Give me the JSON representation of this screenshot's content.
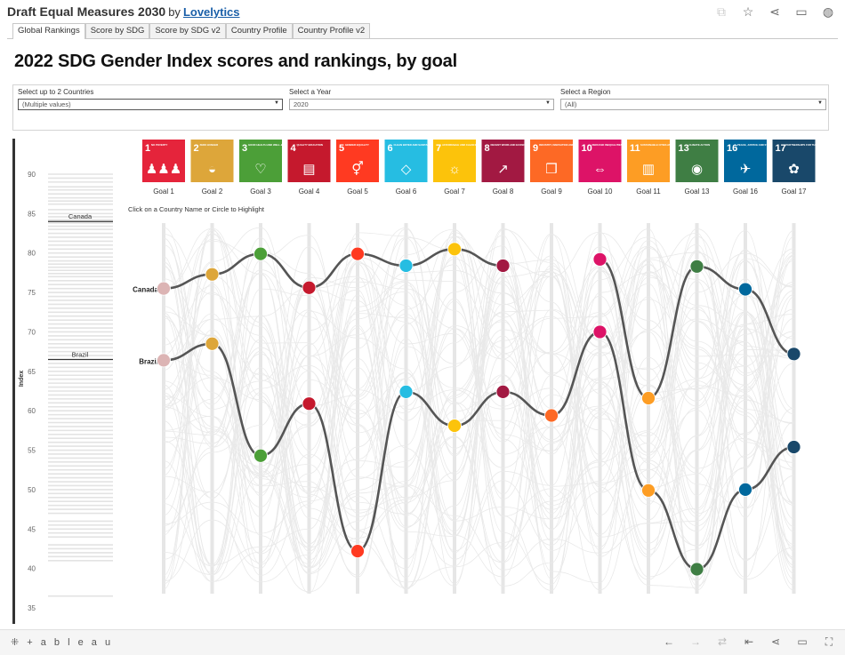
{
  "header": {
    "title": "Draft Equal Measures 2030",
    "by": "by",
    "author": "Lovelytics"
  },
  "tabs": [
    {
      "label": "Global Rankings",
      "active": true
    },
    {
      "label": "Score by SDG",
      "active": false
    },
    {
      "label": "Score by SDG v2",
      "active": false
    },
    {
      "label": "Country Profile",
      "active": false
    },
    {
      "label": "Country Profile v2",
      "active": false
    }
  ],
  "main_title": "2022 SDG Gender Index scores and rankings, by goal",
  "filters": {
    "countries": {
      "label": "Select up to 2 Countries",
      "value": "(Multiple values)"
    },
    "year": {
      "label": "Select a Year",
      "value": "2020"
    },
    "region": {
      "label": "Select a Region",
      "value": "(All)"
    }
  },
  "hint": "Click on a Country Name or Circle to Highlight",
  "goals": [
    {
      "num": "1",
      "caption": "NO POVERTY",
      "label": "Goal 1",
      "color": "#e5243b",
      "glyph": "♟♟♟"
    },
    {
      "num": "2",
      "caption": "ZERO HUNGER",
      "label": "Goal 2",
      "color": "#dda63a",
      "glyph": "◒"
    },
    {
      "num": "3",
      "caption": "GOOD HEALTH AND WELL-BEING",
      "label": "Goal 3",
      "color": "#4c9f38",
      "glyph": "♡"
    },
    {
      "num": "4",
      "caption": "QUALITY EDUCATION",
      "label": "Goal 4",
      "color": "#c5192d",
      "glyph": "▤"
    },
    {
      "num": "5",
      "caption": "GENDER EQUALITY",
      "label": "Goal 5",
      "color": "#ff3a21",
      "glyph": "⚥"
    },
    {
      "num": "6",
      "caption": "CLEAN WATER AND SANITATION",
      "label": "Goal 6",
      "color": "#26bde2",
      "glyph": "◇"
    },
    {
      "num": "7",
      "caption": "AFFORDABLE AND CLEAN ENERGY",
      "label": "Goal 7",
      "color": "#fcc30b",
      "glyph": "☼"
    },
    {
      "num": "8",
      "caption": "DECENT WORK AND ECONOMIC GROWTH",
      "label": "Goal 8",
      "color": "#a21942",
      "glyph": "↗"
    },
    {
      "num": "9",
      "caption": "INDUSTRY, INNOVATION AND INFRASTRUCTURE",
      "label": "Goal 9",
      "color": "#fd6925",
      "glyph": "❒"
    },
    {
      "num": "10",
      "caption": "REDUCED INEQUALITIES",
      "label": "Goal 10",
      "color": "#dd1367",
      "glyph": "⇔"
    },
    {
      "num": "11",
      "caption": "SUSTAINABLE CITIES AND COMMUNITIES",
      "label": "Goal 11",
      "color": "#fd9d24",
      "glyph": "▥"
    },
    {
      "num": "13",
      "caption": "CLIMATE ACTION",
      "label": "Goal 13",
      "color": "#3f7e44",
      "glyph": "◉"
    },
    {
      "num": "16",
      "caption": "PEACE, JUSTICE AND STRONG INSTITUTIONS",
      "label": "Goal 16",
      "color": "#00689d",
      "glyph": "✈"
    },
    {
      "num": "17",
      "caption": "PARTNERSHIPS FOR THE GOALS",
      "label": "Goal 17",
      "color": "#19486a",
      "glyph": "✿"
    }
  ],
  "chart_data": [
    {
      "type": "table",
      "ylabel": "Index",
      "ylim": [
        35,
        90
      ],
      "yticks": [
        90,
        85,
        80,
        75,
        70,
        65,
        60,
        55,
        50,
        45,
        40,
        35
      ],
      "highlighted": [
        {
          "name": "Canada",
          "value": 84
        },
        {
          "name": "Brazil",
          "value": 66.5
        }
      ],
      "grey_ticks": [
        90,
        89.5,
        89,
        88.4,
        88,
        87.5,
        87,
        86.6,
        86.2,
        85.5,
        85,
        84.6,
        84.2,
        83.8,
        83.4,
        83,
        82.5,
        82,
        81.5,
        81,
        80.5,
        80,
        79.5,
        79,
        78.6,
        78.2,
        77.8,
        77.4,
        77,
        76.5,
        76,
        75.5,
        75,
        74.5,
        74,
        73.5,
        73,
        72.5,
        72,
        71.5,
        71,
        70.5,
        70,
        69.5,
        69,
        68.5,
        68,
        67.5,
        67,
        66,
        65.5,
        65,
        64.5,
        64,
        63.5,
        63,
        62.5,
        62,
        61.5,
        61,
        60.5,
        60,
        59.5,
        59,
        58.5,
        58,
        57.5,
        57,
        56.5,
        56,
        55.5,
        55,
        54.5,
        54,
        53.5,
        53,
        52.5,
        52,
        51.5,
        51,
        50.5,
        50,
        49.5,
        49,
        48.5,
        48,
        47.5,
        47,
        46,
        45.5,
        45,
        44.5,
        44,
        43,
        42.5,
        42,
        41.5,
        41,
        36.5
      ]
    },
    {
      "type": "line",
      "categories": [
        "Goal 1",
        "Goal 2",
        "Goal 3",
        "Goal 4",
        "Goal 5",
        "Goal 6",
        "Goal 7",
        "Goal 8",
        "Goal 9",
        "Goal 10",
        "Goal 11",
        "Goal 13",
        "Goal 16",
        "Goal 17"
      ],
      "series": [
        {
          "name": "Canada",
          "values": [
            75.5,
            77.3,
            79.9,
            75.6,
            79.9,
            78.4,
            80.5,
            78.4,
            null,
            79.2,
            61.6,
            78.3,
            75.4,
            67.2
          ]
        },
        {
          "name": "Brazil",
          "values": [
            66.4,
            68.5,
            54.3,
            60.9,
            42.2,
            62.4,
            58.1,
            62.4,
            59.4,
            70.0,
            49.9,
            39.9,
            50.0,
            55.4
          ]
        }
      ],
      "ylim": [
        35,
        90
      ]
    }
  ]
}
